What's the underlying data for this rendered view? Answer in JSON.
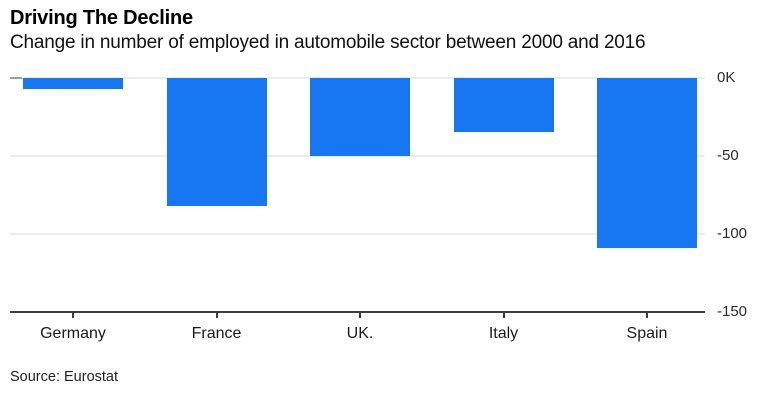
{
  "header": {
    "title": "Driving The Decline",
    "subtitle": "Change in number of employed in automobile sector between 2000 and 2016"
  },
  "source": "Source: Eurostat",
  "chart_data": {
    "type": "bar",
    "title": "Driving The Decline",
    "subtitle": "Change in number of employed in automobile sector between 2000 and 2016",
    "categories": [
      "Germany",
      "France",
      "UK.",
      "Italy",
      "Spain"
    ],
    "values": [
      -7,
      -82,
      -50,
      -35,
      -109
    ],
    "unit": "thousands of employees (K)",
    "xlabel": "",
    "ylabel": "",
    "ylim": [
      -150,
      0
    ],
    "yticks": [
      0,
      -50,
      -100,
      -150
    ],
    "ytick_labels": [
      "0K",
      "-50",
      "-100",
      "-150"
    ],
    "bar_color": "#1777f2",
    "grid": true,
    "legend": false,
    "axis_label_side": "right"
  }
}
